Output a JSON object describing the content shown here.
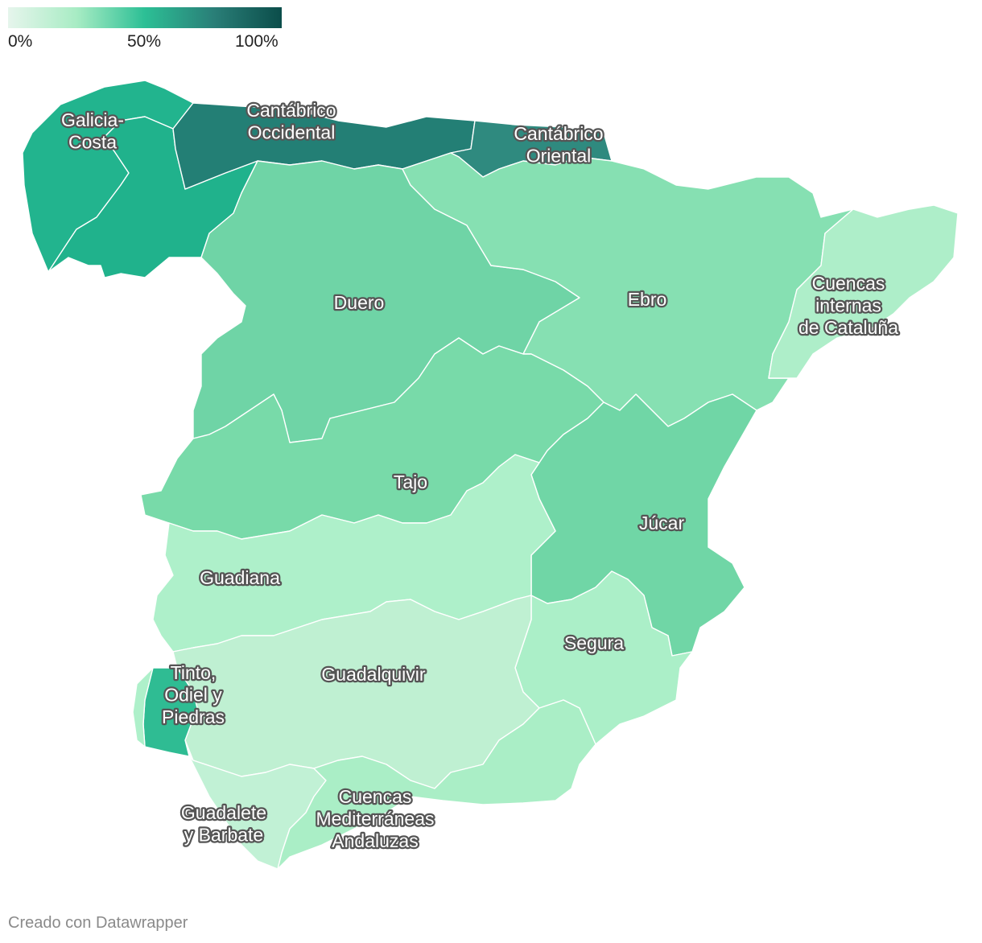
{
  "legend": {
    "gradient_stops": [
      "#e6f5ec",
      "#a8ecc4",
      "#2cbf95",
      "#2a7f78",
      "#0b4d4a"
    ],
    "ticks": [
      {
        "label": "0%",
        "value": 0
      },
      {
        "label": "50%",
        "value": 50
      },
      {
        "label": "100%",
        "value": 100
      }
    ]
  },
  "regions": [
    {
      "id": "galicia-costa",
      "label_lines": [
        "Galicia-",
        "Costa"
      ],
      "color": "#22b48e"
    },
    {
      "id": "mino-sil",
      "label_lines": [],
      "color": "#20b28c"
    },
    {
      "id": "cantabrico-occidental",
      "label_lines": [
        "Cantábrico",
        "Occidental"
      ],
      "color": "#237f75"
    },
    {
      "id": "cantabrico-oriental",
      "label_lines": [
        "Cantábrico",
        "Oriental"
      ],
      "color": "#2f8a7f"
    },
    {
      "id": "duero",
      "label_lines": [
        "Duero"
      ],
      "color": "#6fd4a6"
    },
    {
      "id": "ebro",
      "label_lines": [
        "Ebro"
      ],
      "color": "#86e0b2"
    },
    {
      "id": "cuencas-internas-cataluna",
      "label_lines": [
        "Cuencas",
        "internas",
        "de Cataluña"
      ],
      "color": "#aeeec9"
    },
    {
      "id": "tajo",
      "label_lines": [
        "Tajo"
      ],
      "color": "#78daa9"
    },
    {
      "id": "jucar",
      "label_lines": [
        "Júcar"
      ],
      "color": "#70d6a6"
    },
    {
      "id": "guadiana",
      "label_lines": [
        "Guadiana"
      ],
      "color": "#aef0ca"
    },
    {
      "id": "segura",
      "label_lines": [
        "Segura"
      ],
      "color": "#abefc8"
    },
    {
      "id": "guadalquivir",
      "label_lines": [
        "Guadalquivir"
      ],
      "color": "#bff0d2"
    },
    {
      "id": "tinto-odiel-piedras",
      "label_lines": [
        "Tinto,",
        "Odiel y",
        "Piedras"
      ],
      "color": "#2fbc93"
    },
    {
      "id": "guadalete-barbate",
      "label_lines": [
        "Guadalete",
        "y Barbate"
      ],
      "color": "#c1f1d5"
    },
    {
      "id": "cuencas-mediterraneas-andaluzas",
      "label_lines": [
        "Cuencas",
        "Mediterráneas",
        "Andaluzas"
      ],
      "color": "#aaeec6"
    }
  ],
  "credit": "Creado con Datawrapper"
}
